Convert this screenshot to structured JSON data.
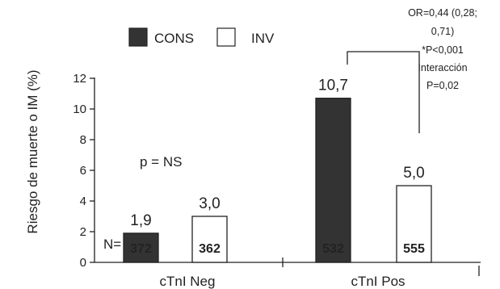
{
  "chart_data": {
    "type": "bar",
    "title": "",
    "xlabel": "",
    "ylabel": "Riesgo de muerte o IM (%)",
    "ylim": [
      0,
      12
    ],
    "yticks": [
      "0",
      "2",
      "4",
      "6",
      "8",
      "10",
      "12"
    ],
    "categories": [
      "cTnI Neg",
      "cTnI Pos"
    ],
    "legend_position": "top",
    "grid": false,
    "series": [
      {
        "name": "CONS",
        "color": "#333333",
        "values": [
          1.9,
          10.7
        ],
        "value_labels": [
          "1,9",
          "10,7"
        ],
        "n": [
          "372",
          "532"
        ]
      },
      {
        "name": "INV",
        "color": "#ffffff",
        "values": [
          3.0,
          5.0
        ],
        "value_labels": [
          "3,0",
          "5,0"
        ],
        "n": [
          "362",
          "555"
        ]
      }
    ],
    "n_prefix": "N=",
    "annotations": {
      "neg_group": "p = NS",
      "pos_group": [
        "OR=0,44 (0,28;",
        "0,71)",
        "*P<0,001",
        "Interacción",
        "P=0,02"
      ]
    }
  }
}
